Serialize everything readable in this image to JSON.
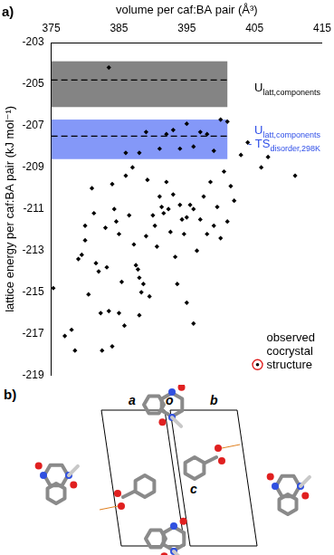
{
  "chart_data": {
    "type": "scatter",
    "panel_label": "a)",
    "x_label": "volume per caf:BA pair (Å³)",
    "y_label": "lattice energy per caf:BA pair (kJ mol⁻¹)",
    "xlim": [
      375,
      415
    ],
    "xticks": [
      375,
      385,
      395,
      405,
      415
    ],
    "ylim": [
      -219,
      -203
    ],
    "yticks": [
      -219,
      -217,
      -215,
      -213,
      -211,
      -209,
      -207,
      -205,
      -203
    ],
    "grid": false,
    "legend": "lower right",
    "series": [
      {
        "color": "#000000",
        "marker": "diamond",
        "x": [
          383.5,
          388,
          391,
          392,
          393,
          394,
          395,
          396,
          397,
          398,
          399,
          400,
          401,
          403,
          404,
          406,
          407,
          411,
          386,
          389,
          375.3,
          377,
          378,
          378.5,
          379,
          379.5,
          380,
          380,
          380.5,
          381,
          381.3,
          381.6,
          382,
          382.3,
          382.5,
          383,
          383.2,
          383.5,
          384,
          384.3,
          384.6,
          385,
          385.4,
          385.8,
          386,
          386.5,
          387,
          387.2,
          387.5,
          387.8,
          388,
          388.3,
          388.6,
          389,
          389.2,
          389.5,
          390,
          390.3,
          390.6,
          391,
          391.3,
          391.6,
          392,
          392.3,
          392.6,
          393,
          393.3,
          393.6,
          394,
          394.3,
          394.6,
          395,
          395.5,
          396,
          396.5,
          397,
          397.5,
          398,
          398.5,
          399,
          399.5,
          400,
          400.5,
          401,
          401.5,
          402,
          385,
          388,
          384,
          396,
          395
        ],
        "values": [
          -204.2,
          -208.3,
          -208.1,
          -207.4,
          -207.2,
          -208.1,
          -206.9,
          -208.0,
          -207.3,
          -207.4,
          -208.2,
          -206.7,
          -206.8,
          -208.4,
          -207.8,
          -209.0,
          -208.5,
          -209.4,
          -208.3,
          -207.3,
          -214.8,
          -217.1,
          -216.8,
          -217.8,
          -213.4,
          -213.2,
          -211.8,
          -212.5,
          -215.1,
          -210.0,
          -211.2,
          -213.6,
          -214.0,
          -216.0,
          -217.8,
          -211.9,
          -213.8,
          -215.9,
          -209.8,
          -211.0,
          -211.6,
          -212.2,
          -214.5,
          -216.6,
          -209.4,
          -211.3,
          -209.0,
          -212.7,
          -213.7,
          -213.9,
          -214.3,
          -215.0,
          -214.6,
          -212.3,
          -209.6,
          -215.2,
          -211.3,
          -211.8,
          -212.8,
          -210.4,
          -210.9,
          -211.2,
          -209.7,
          -211.0,
          -212.1,
          -210.3,
          -213.3,
          -214.6,
          -210.8,
          -211.5,
          -212.2,
          -211.4,
          -210.8,
          -211.0,
          -213.0,
          -211.5,
          -210.4,
          -212.2,
          -209.7,
          -211.8,
          -210.9,
          -212.4,
          -209.2,
          -211.6,
          -209.9,
          -210.6,
          -216.0,
          -216.1,
          -217.6,
          -216.5,
          -215.5
        ]
      },
      {
        "name": "observed cocrystal structure",
        "color": "#e02020",
        "marker": "circle_dot",
        "x": [],
        "values": []
      }
    ],
    "bands": [
      {
        "x": [
          375,
          401
        ],
        "ymin": -206.1,
        "ymax": -203.9,
        "line": -204.8,
        "color": "#6e6e6e",
        "text_color": "#000000",
        "label_lines": [
          [
            {
              "text": "U",
              "sub": "latt,components"
            }
          ]
        ]
      },
      {
        "x": [
          375,
          401
        ],
        "ymin": -208.6,
        "ymax": -206.7,
        "line": -207.5,
        "color": "#6f86f7",
        "text_color": "#2f4fe8",
        "label_lines": [
          [
            {
              "text": "U",
              "sub": "latt,components"
            }
          ],
          [
            {
              "text": "- TS",
              "sub": "disorder,298K"
            }
          ]
        ]
      }
    ]
  },
  "panel_b": {
    "label": "b)",
    "cell_axes": [
      "a",
      "o",
      "b",
      "c"
    ]
  }
}
